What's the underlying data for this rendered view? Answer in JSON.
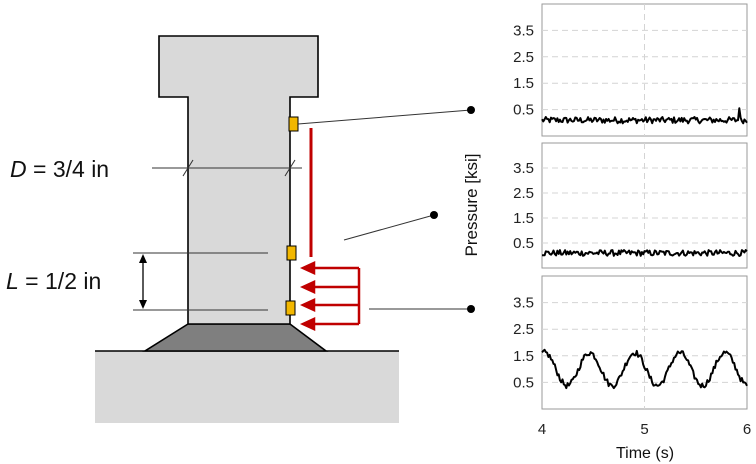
{
  "diagram": {
    "dimension_d": {
      "var": "D",
      "rest": " = 3/4 in"
    },
    "dimension_l": {
      "var": "L",
      "rest": " = 1/2 in"
    }
  },
  "colors": {
    "column_fill": "#d9d9d9",
    "base_fill": "#7f7f7f",
    "ground_fill": "#d9d9d9",
    "arrow": "#c00000",
    "sensor": "#f2b700",
    "trace": "#000000",
    "grid": "#d4d4d4"
  },
  "chart_data": [
    {
      "type": "line",
      "title": "",
      "xlabel": "",
      "ylabel": "",
      "xlim": [
        4,
        6
      ],
      "ylim": [
        -0.5,
        4.5
      ],
      "yticks": [
        "3.5",
        "2.5",
        "1.5",
        "0.5"
      ],
      "series": [
        {
          "waveform": "noise",
          "mean": 0.1,
          "amplitude": 0.12,
          "spike_at": 5.92,
          "spike_value": 0.55
        }
      ],
      "grid": true
    },
    {
      "type": "line",
      "title": "",
      "xlabel": "",
      "ylabel": "Pressure [ksi]",
      "xlim": [
        4,
        6
      ],
      "ylim": [
        -0.5,
        4.5
      ],
      "yticks": [
        "3.5",
        "2.5",
        "1.5",
        "0.5"
      ],
      "series": [
        {
          "waveform": "noise",
          "mean": 0.1,
          "amplitude": 0.12
        }
      ],
      "grid": true
    },
    {
      "type": "line",
      "title": "",
      "xlabel": "Time (s)",
      "ylabel": "",
      "xlim": [
        4,
        6
      ],
      "ylim": [
        -0.5,
        4.5
      ],
      "yticks": [
        "3.5",
        "2.5",
        "1.5",
        "0.5"
      ],
      "xticks": [
        "4",
        "5",
        "6"
      ],
      "series": [
        {
          "waveform": "sine",
          "mean": 1.0,
          "amplitude": 0.62,
          "period_s": 0.44,
          "phase_start": 4.0
        }
      ],
      "grid": true
    }
  ]
}
